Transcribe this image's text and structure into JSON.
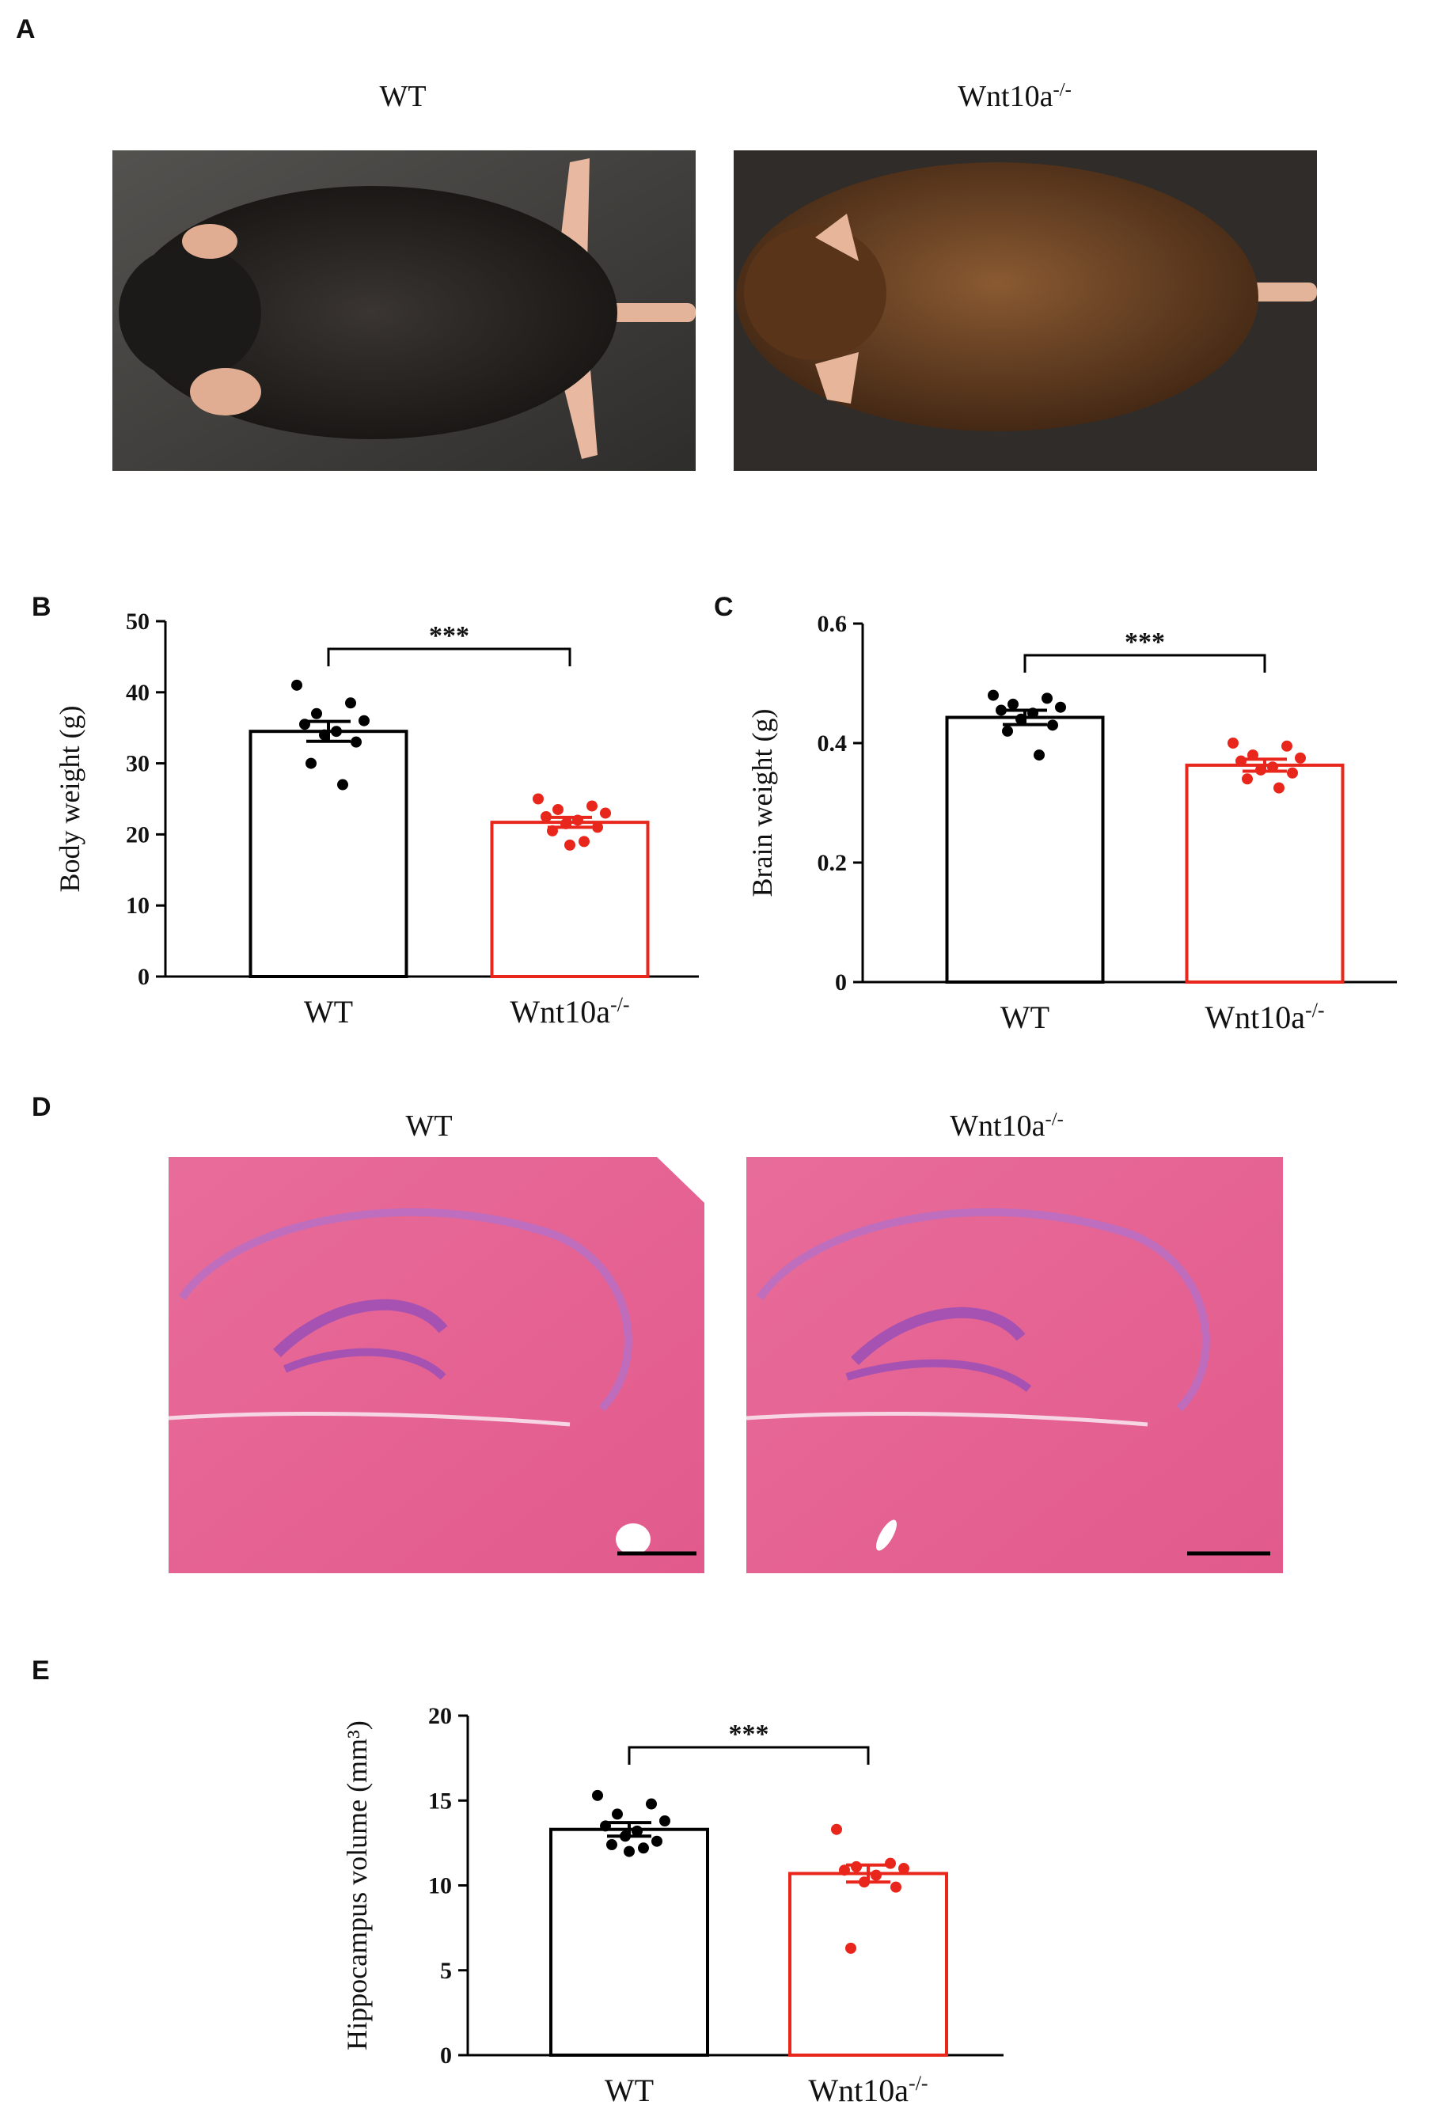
{
  "panel_labels": [
    "A",
    "B",
    "C",
    "D",
    "E"
  ],
  "photo_panels": [
    {
      "captions": [
        "WT",
        "Wnt10a-/-"
      ]
    },
    {
      "captions": [
        "WT",
        "Wnt10a-/-"
      ]
    }
  ],
  "chart_data": [
    {
      "type": "bar",
      "y_label": "Body weight (g)",
      "categories": [
        "WT",
        "Wnt10a-/-"
      ],
      "values": [
        34.5,
        21.7
      ],
      "errors": [
        1.4,
        0.7
      ],
      "colors": [
        "#000000",
        "#e8261c"
      ],
      "points": [
        [
          41,
          38.5,
          37,
          36,
          35.5,
          34.5,
          34,
          33,
          30,
          27
        ],
        [
          25,
          24,
          23.5,
          23,
          22.5,
          22,
          21.5,
          21,
          20.5,
          19,
          18.5
        ]
      ],
      "annotation": "***",
      "ylim": [
        0,
        50
      ],
      "yticks": [
        0,
        10,
        20,
        30,
        40,
        50
      ]
    },
    {
      "type": "bar",
      "y_label": "Brain weight (g)",
      "categories": [
        "WT",
        "Wnt10a-/-"
      ],
      "values": [
        0.443,
        0.363
      ],
      "errors": [
        0.012,
        0.01
      ],
      "colors": [
        "#000000",
        "#e8261c"
      ],
      "points": [
        [
          0.48,
          0.475,
          0.465,
          0.46,
          0.455,
          0.45,
          0.44,
          0.43,
          0.42,
          0.38
        ],
        [
          0.4,
          0.395,
          0.38,
          0.375,
          0.37,
          0.36,
          0.355,
          0.35,
          0.34,
          0.325
        ]
      ],
      "annotation": "***",
      "ylim": [
        0,
        0.6
      ],
      "yticks": [
        0,
        0.2,
        0.4,
        0.6
      ]
    },
    {
      "type": "bar",
      "y_label": "Hippocampus volume (mm³)",
      "categories": [
        "WT",
        "Wnt10a-/-"
      ],
      "values": [
        13.3,
        10.7
      ],
      "errors": [
        0.4,
        0.5
      ],
      "colors": [
        "#000000",
        "#e8261c"
      ],
      "points": [
        [
          15.3,
          14.8,
          14.2,
          13.8,
          13.5,
          13.2,
          12.9,
          12.6,
          12.4,
          12.2,
          12.0
        ],
        [
          13.3,
          11.3,
          11.1,
          11.0,
          10.9,
          10.6,
          10.2,
          9.9,
          6.3
        ]
      ],
      "annotation": "***",
      "ylim": [
        0,
        20
      ],
      "yticks": [
        0,
        5,
        10,
        15,
        20
      ]
    }
  ]
}
